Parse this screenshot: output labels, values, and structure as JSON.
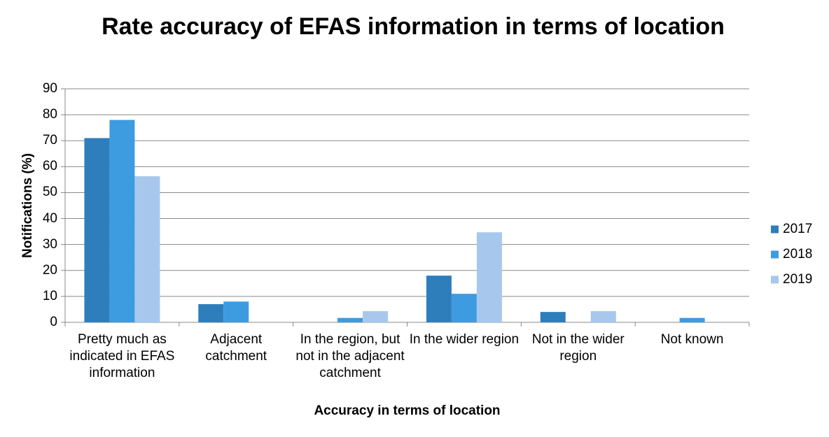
{
  "chart_data": {
    "type": "bar",
    "title": "Rate accuracy of EFAS information in terms of location",
    "x_label": "Accuracy in terms of location",
    "y_label": "Notifications (%)",
    "categories": [
      "Pretty much as indicated in EFAS information",
      "Adjacent catchment",
      "In the region, but not in the adjacent catchment",
      "In the wider region",
      "Not in the wider region",
      "Not known"
    ],
    "series": [
      {
        "name": "2017",
        "color": "#2e7ebc",
        "values": [
          71,
          7,
          0,
          18,
          4,
          0
        ]
      },
      {
        "name": "2018",
        "color": "#3d9be0",
        "values": [
          78,
          8,
          1.7,
          11,
          0,
          1.7
        ]
      },
      {
        "name": "2019",
        "color": "#a7c8ec",
        "values": [
          56.3,
          0,
          4.3,
          34.7,
          4.3,
          0
        ]
      }
    ],
    "ylim": [
      0,
      90
    ],
    "yticks": [
      0,
      10,
      20,
      30,
      40,
      50,
      60,
      70,
      80,
      90
    ],
    "grid": true,
    "legend": "right"
  }
}
